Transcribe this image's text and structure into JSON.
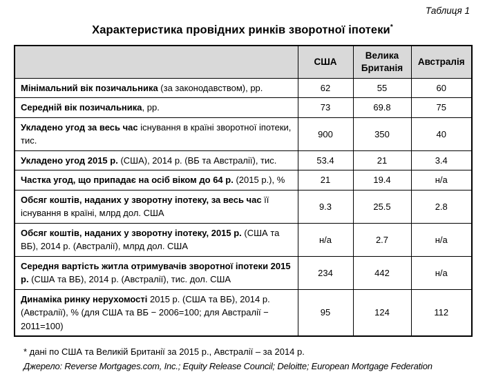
{
  "header": {
    "caption": "Таблиця 1",
    "title": "Характеристика провідних ринків зворотної іпотеки",
    "title_asterisk": "*"
  },
  "table": {
    "columns": [
      "США",
      "Велика Британія",
      "Австралія"
    ],
    "rows": [
      {
        "label_bold": "Мінімальний вік позичальника",
        "label_rest": " (за законодавством),  рр.",
        "values": [
          "62",
          "55",
          "60"
        ]
      },
      {
        "label_bold": "Середній вік позичальника",
        "label_rest": ", рр.",
        "values": [
          "73",
          "69.8",
          "75"
        ]
      },
      {
        "label_bold": "Укладено угод за весь час",
        "label_rest": " існування в країні зворотної іпотеки, тис.",
        "values": [
          "900",
          "350",
          "40"
        ]
      },
      {
        "label_bold": "Укладено угод 2015 р.",
        "label_rest": " (США), 2014 р. (ВБ та Австралії), тис.",
        "values": [
          "53.4",
          "21",
          "3.4"
        ]
      },
      {
        "label_bold": "Частка угод, що припадає на осіб віком до 64 р.",
        "label_rest": " (2015 р.), %",
        "values": [
          "21",
          "19.4",
          "н/а"
        ]
      },
      {
        "label_bold": "Обсяг коштів, наданих у зворотну іпотеку, за весь час",
        "label_rest": " її існування в країні, млрд дол. США",
        "values": [
          "9.3",
          "25.5",
          "2.8"
        ]
      },
      {
        "label_bold": "Обсяг коштів, наданих у зворотну іпотеку, 2015 р.",
        "label_rest": " (США та ВБ), 2014 р. (Австралії), млрд дол. США",
        "values": [
          "н/а",
          "2.7",
          "н/а"
        ]
      },
      {
        "label_bold": "Середня вартість житла отримувачів зворотної іпотеки 2015 р.",
        "label_rest": " (США та ВБ), 2014 р. (Австралії), тис. дол. США",
        "values": [
          "234",
          "442",
          "н/а"
        ]
      },
      {
        "label_bold": "Динаміка ринку нерухомості",
        "label_rest": " 2015 р. (США та ВБ), 2014 р. (Австралії), % (для США та ВБ − 2006=100; для Австралії − 2011=100)",
        "values": [
          "95",
          "124",
          "112"
        ]
      }
    ]
  },
  "footnotes": {
    "note": "* дані по США та Великій Британії за 2015 р., Австралії – за 2014 р.",
    "source": "Джерело: Reverse Mortgages.com, Inc.; Equity Release Council; Deloitte; European Mortgage Federation"
  },
  "colors": {
    "header_background": "#d9d9d9",
    "border": "#000000",
    "text": "#000000",
    "page_background": "#ffffff"
  }
}
